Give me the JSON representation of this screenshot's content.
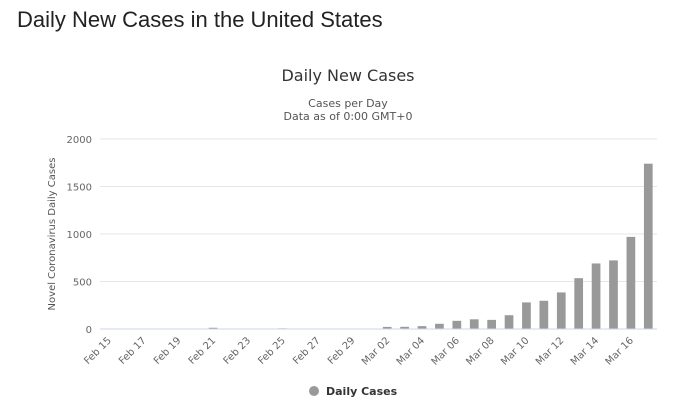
{
  "page": {
    "title": "Daily New Cases in the United States"
  },
  "chart_data": {
    "type": "bar",
    "title": "Daily New Cases",
    "subtitle_lines": [
      "Cases per Day",
      "Data as of 0:00 GMT+0"
    ],
    "ylabel": "Novel Coronavirus Daily Cases",
    "xlabel": "",
    "ylim": [
      0,
      2000
    ],
    "yticks": [
      0,
      500,
      1000,
      1500,
      2000
    ],
    "color": "#999999",
    "categories": [
      "Feb 15",
      "Feb 16",
      "Feb 17",
      "Feb 18",
      "Feb 19",
      "Feb 20",
      "Feb 21",
      "Feb 22",
      "Feb 23",
      "Feb 24",
      "Feb 25",
      "Feb 26",
      "Feb 27",
      "Feb 28",
      "Feb 29",
      "Mar 01",
      "Mar 02",
      "Mar 03",
      "Mar 04",
      "Mar 05",
      "Mar 06",
      "Mar 07",
      "Mar 08",
      "Mar 09",
      "Mar 10",
      "Mar 11",
      "Mar 12",
      "Mar 13",
      "Mar 14",
      "Mar 15",
      "Mar 16",
      "Mar 17"
    ],
    "xtick_labels": [
      "Feb 15",
      "Feb 17",
      "Feb 19",
      "Feb 21",
      "Feb 23",
      "Feb 25",
      "Feb 27",
      "Feb 29",
      "Mar 02",
      "Mar 04",
      "Mar 06",
      "Mar 08",
      "Mar 10",
      "Mar 12",
      "Mar 14",
      "Mar 16"
    ],
    "series": [
      {
        "name": "Daily Cases",
        "values": [
          0,
          0,
          0,
          0,
          0,
          0,
          13,
          0,
          0,
          0,
          7,
          0,
          0,
          0,
          0,
          0,
          22,
          23,
          30,
          55,
          86,
          102,
          96,
          145,
          280,
          297,
          385,
          535,
          690,
          722,
          970,
          1740
        ]
      }
    ],
    "legend": {
      "position": "bottom-center",
      "label": "Daily Cases"
    }
  }
}
